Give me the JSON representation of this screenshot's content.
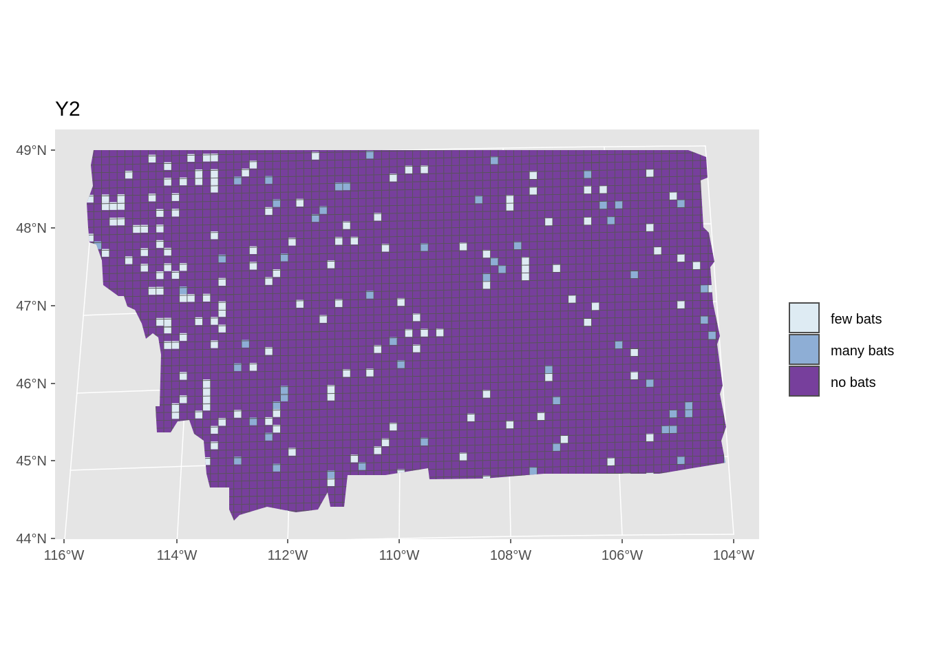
{
  "title": "Y2",
  "chart_data": {
    "type": "heatmap",
    "title": "Y2",
    "xlabel": "",
    "ylabel": "",
    "x_ticks": [
      "116°W",
      "114°W",
      "112°W",
      "110°W",
      "108°W",
      "106°W",
      "104°W"
    ],
    "y_ticks": [
      "49°N",
      "48°N",
      "47°N",
      "46°N",
      "45°N",
      "44°N"
    ],
    "xlim": [
      -116,
      -104
    ],
    "ylim": [
      44,
      49
    ],
    "grid": true,
    "legend_position": "right",
    "categories": [
      "few bats",
      "many bats",
      "no bats"
    ],
    "colors": {
      "few bats": "#deebf3",
      "many bats": "#8eaed5",
      "no bats": "#773f9c"
    },
    "cell_border_color": "#555555",
    "panel_background": "#e5e5e5",
    "grid_color": "#ffffff"
  },
  "legend": {
    "items": [
      {
        "label": "few bats",
        "color": "#deebf3"
      },
      {
        "label": "many bats",
        "color": "#8eaed5"
      },
      {
        "label": "no bats",
        "color": "#773f9c"
      }
    ]
  }
}
